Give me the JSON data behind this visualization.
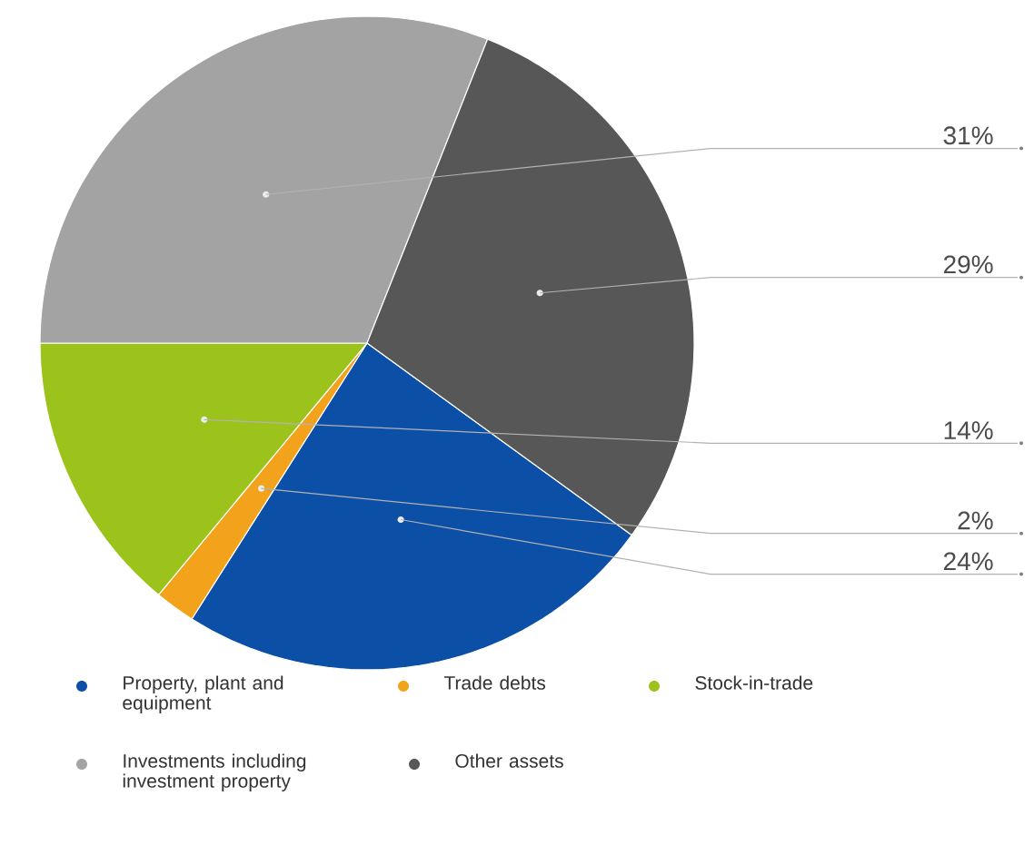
{
  "chart_data": {
    "type": "pie",
    "categories": [
      "Property, plant and equipment",
      "Trade debts",
      "Stock-in-trade",
      "Investments including investment property",
      "Other assets"
    ],
    "values": [
      24,
      2,
      14,
      31,
      29
    ],
    "value_labels": [
      "24%",
      "2%",
      "14%",
      "31%",
      "29%"
    ],
    "colors": [
      "#0b4fa6",
      "#f2a31b",
      "#9cc31c",
      "#a3a3a3",
      "#575757"
    ],
    "legend": "bottom"
  }
}
